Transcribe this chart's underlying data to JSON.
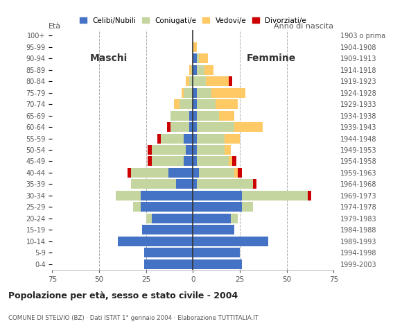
{
  "age_groups": [
    "0-4",
    "5-9",
    "10-14",
    "15-19",
    "20-24",
    "25-29",
    "30-34",
    "35-39",
    "40-44",
    "45-49",
    "50-54",
    "55-59",
    "60-64",
    "65-69",
    "70-74",
    "75-79",
    "80-84",
    "85-89",
    "90-94",
    "95-99",
    "100+"
  ],
  "birth_years": [
    "1999-2003",
    "1994-1998",
    "1989-1993",
    "1984-1988",
    "1979-1983",
    "1974-1978",
    "1969-1973",
    "1964-1968",
    "1959-1963",
    "1954-1958",
    "1949-1953",
    "1944-1948",
    "1939-1943",
    "1934-1938",
    "1929-1933",
    "1924-1928",
    "1919-1923",
    "1914-1918",
    "1909-1913",
    "1904-1908",
    "1903 o prima"
  ],
  "males": {
    "celibi": [
      26,
      26,
      40,
      27,
      22,
      28,
      28,
      9,
      13,
      5,
      4,
      5,
      2,
      2,
      0,
      0,
      0,
      0,
      0,
      0,
      0
    ],
    "coniugati": [
      0,
      0,
      0,
      0,
      3,
      4,
      13,
      24,
      20,
      17,
      18,
      12,
      10,
      10,
      7,
      5,
      2,
      1,
      0,
      0,
      0
    ],
    "vedovi": [
      0,
      0,
      0,
      0,
      0,
      0,
      0,
      0,
      0,
      0,
      0,
      0,
      0,
      0,
      3,
      1,
      2,
      1,
      0,
      0,
      0
    ],
    "divorziati": [
      0,
      0,
      0,
      0,
      0,
      0,
      0,
      0,
      2,
      2,
      2,
      2,
      2,
      0,
      0,
      0,
      0,
      0,
      0,
      0,
      0
    ]
  },
  "females": {
    "nubili": [
      26,
      25,
      40,
      22,
      20,
      26,
      26,
      2,
      3,
      2,
      2,
      2,
      2,
      2,
      2,
      2,
      0,
      2,
      2,
      0,
      0
    ],
    "coniugate": [
      0,
      0,
      0,
      0,
      4,
      6,
      35,
      30,
      19,
      17,
      15,
      15,
      20,
      12,
      10,
      8,
      7,
      4,
      1,
      0,
      0
    ],
    "vedove": [
      0,
      0,
      0,
      0,
      0,
      0,
      0,
      0,
      2,
      2,
      3,
      8,
      15,
      8,
      12,
      18,
      12,
      5,
      5,
      2,
      0
    ],
    "divorziate": [
      0,
      0,
      0,
      0,
      0,
      0,
      2,
      2,
      2,
      2,
      0,
      0,
      0,
      0,
      0,
      0,
      2,
      0,
      0,
      0,
      0
    ]
  },
  "colors": {
    "celibi": "#4472c4",
    "coniugati": "#c5d5a0",
    "vedovi": "#ffc966",
    "divorziati": "#cc0000"
  },
  "xlim": 75,
  "title": "Popolazione per età, sesso e stato civile - 2004",
  "subtitle": "COMUNE DI STELVIO (BZ) · Dati ISTAT 1° gennaio 2004 · Elaborazione TUTTITALIA.IT",
  "ylabel_left": "Età",
  "ylabel_right": "Anno di nascita",
  "xlabel_maschi": "Maschi",
  "xlabel_femmine": "Femmine",
  "legend_labels": [
    "Celibi/Nubili",
    "Coniugati/e",
    "Vedovi/e",
    "Divorziati/e"
  ],
  "background_color": "#ffffff"
}
